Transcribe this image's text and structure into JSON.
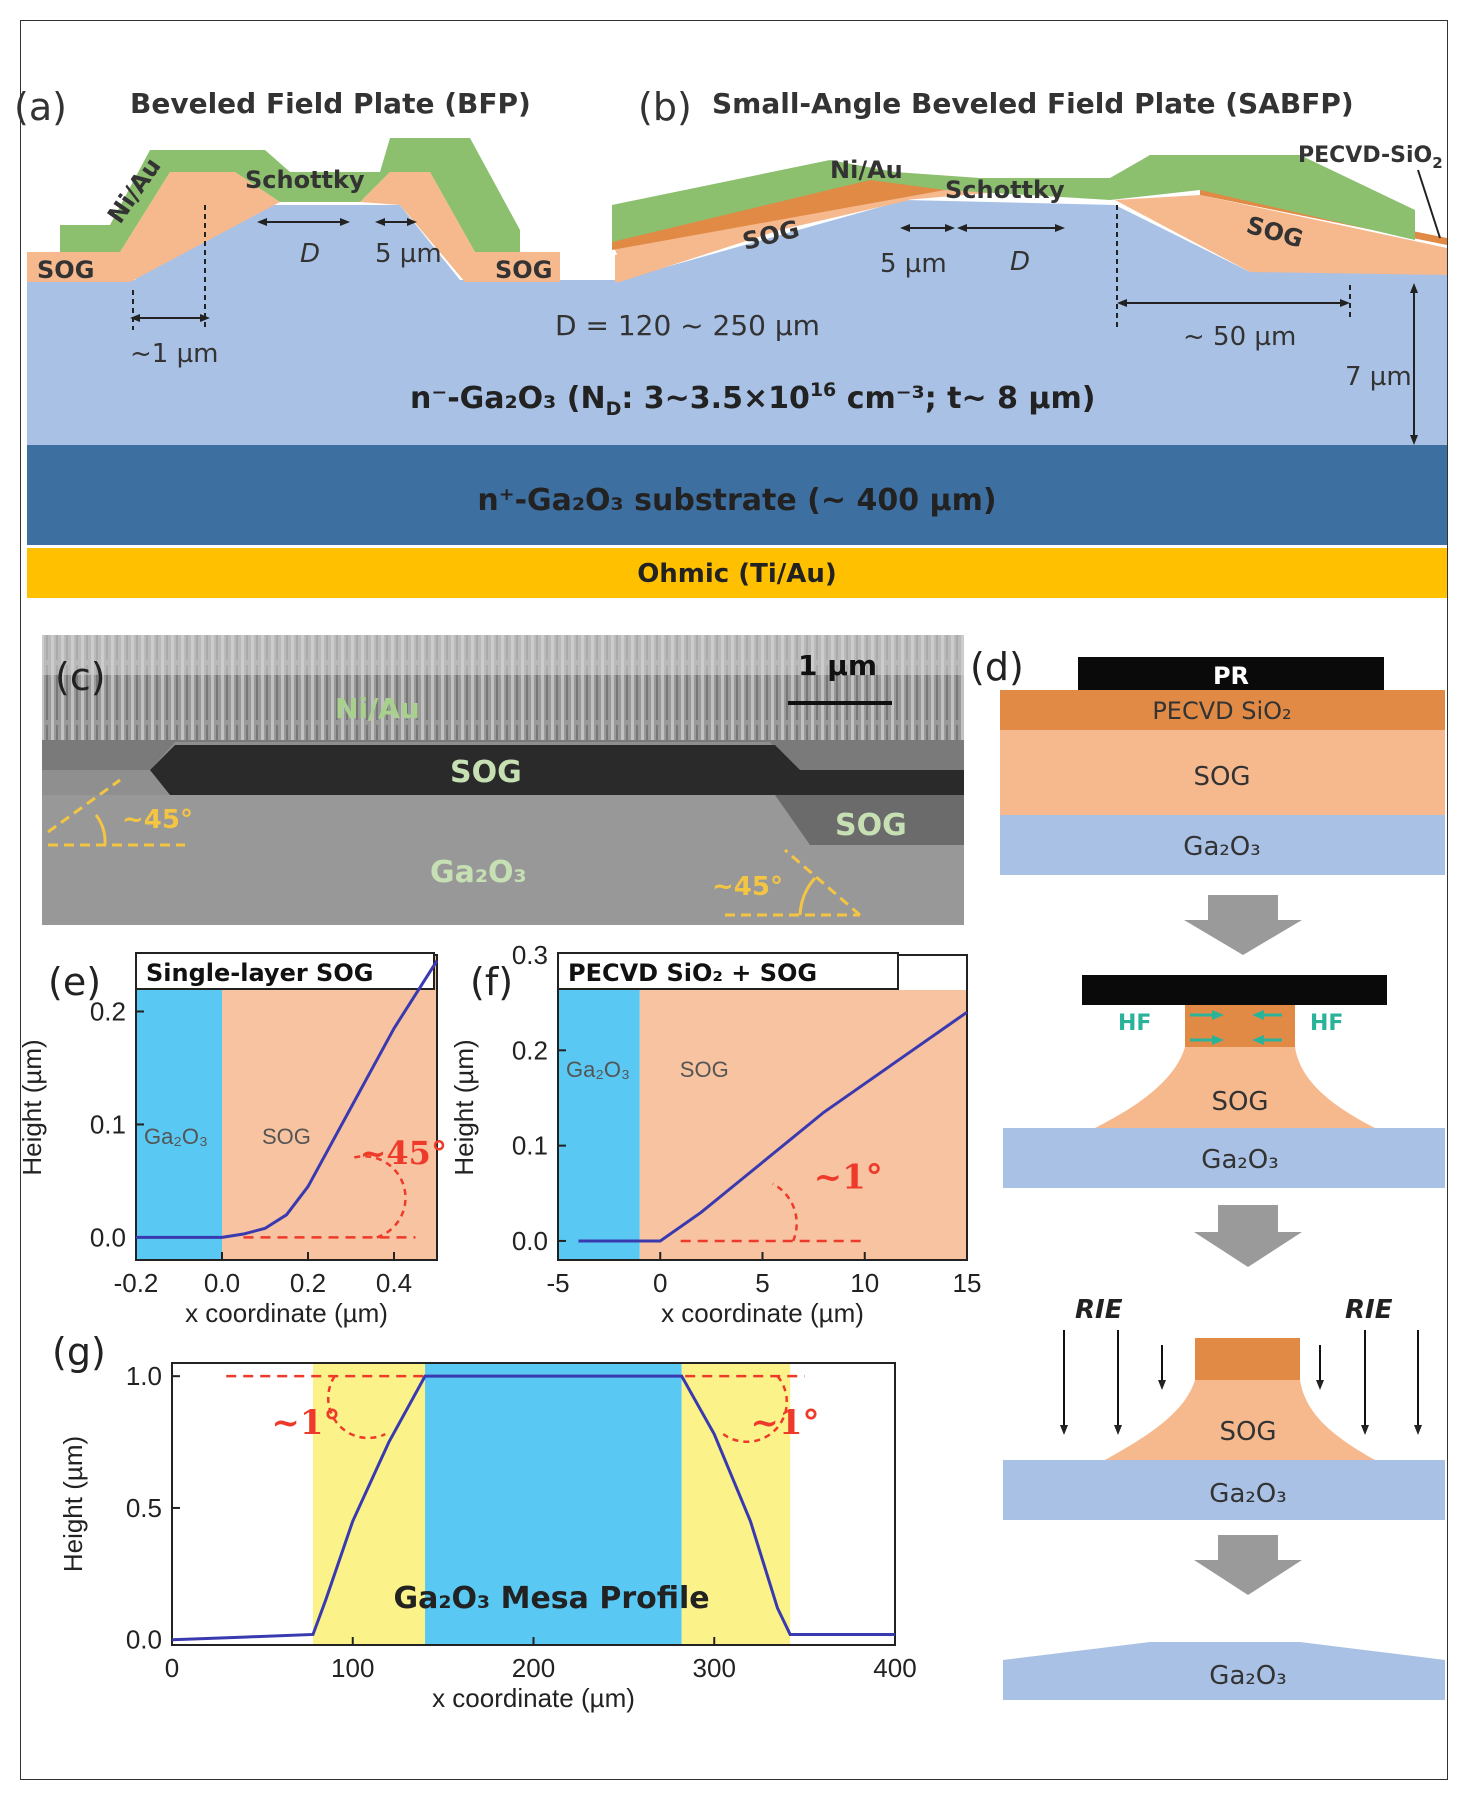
{
  "panel_a": {
    "letter": "(a)",
    "title": "Beveled Field Plate (BFP)",
    "metal": "Ni/Au",
    "schottky": "Schottky",
    "d": "D",
    "five_um": "5 µm",
    "sog_left": "SOG",
    "sog_right": "SOG",
    "one_um": "~1 µm"
  },
  "panel_b": {
    "letter": "(b)",
    "title": "Small-Angle Beveled Field Plate (SABFP)",
    "metal": "Ni/Au",
    "schottky": "Schottky",
    "pecvd": "PECVD-SiO",
    "pecvd_sub": "2",
    "sog_left": "SOG",
    "sog_right": "SOG",
    "five_um": "5 µm",
    "d": "D",
    "fifty_um": "~ 50 µm",
    "seven_um": "7 µm"
  },
  "layers": {
    "d_range": "D = 120 ~ 250 µm",
    "drift": "n⁻-Ga₂O₃ (N",
    "drift_sub": "D",
    "drift_rest": ": 3~3.5×10",
    "drift_exp": "16",
    "drift_unit": " cm⁻³; t~ 8 µm)",
    "substrate": "n⁺-Ga₂O₃ substrate (~ 400 µm)",
    "ohmic": "Ohmic (Ti/Au)"
  },
  "panel_c": {
    "letter": "(c)",
    "scale": "1 µm",
    "metal": "Ni/Au",
    "sog_top": "SOG",
    "sog_right": "SOG",
    "ga2o3": "Ga₂O₃",
    "angle_left": "~45°",
    "angle_right": "~45°"
  },
  "panel_d": {
    "letter": "(d)",
    "pr": "PR",
    "pecvd": "PECVD SiO₂",
    "sog": "SOG",
    "ga2o3": "Ga₂O₃",
    "hf": "HF",
    "rie": "RIE"
  },
  "colors": {
    "ga2o3_light": "#a9c1e4",
    "ga2o3_dark": "#3e6fa1",
    "sog": "#f6b98e",
    "sio2": "#e08a45",
    "metal": "#8cbf6e",
    "ohmic": "#ffc000",
    "plot_blue": "#59c8f2",
    "plot_sog": "#f8c3a0",
    "plot_yellow": "#fbf38a",
    "curve": "#3a3ab0",
    "red": "#ee3a2b"
  },
  "chart_data": [
    {
      "panel": "(e)",
      "type": "line",
      "title": "Single-layer SOG",
      "xlabel": "x coordinate (µm)",
      "ylabel": "Height (µm)",
      "xlim": [
        -0.2,
        0.5
      ],
      "ylim": [
        -0.02,
        0.25
      ],
      "xticks": [
        "-0.2",
        "0.0",
        "0.2",
        "0.4"
      ],
      "yticks": [
        "0.0",
        "0.1",
        "0.2"
      ],
      "regions": [
        {
          "label": "Ga₂O₃",
          "from": -0.2,
          "to": 0.0
        },
        {
          "label": "SOG",
          "from": 0.0,
          "to": 0.5
        }
      ],
      "annotation": "~45°",
      "x": [
        -0.2,
        -0.1,
        0.0,
        0.05,
        0.1,
        0.15,
        0.2,
        0.25,
        0.3,
        0.35,
        0.4,
        0.45,
        0.5
      ],
      "y": [
        0.0,
        0.0,
        0.0,
        0.003,
        0.008,
        0.02,
        0.045,
        0.08,
        0.115,
        0.15,
        0.185,
        0.215,
        0.245
      ]
    },
    {
      "panel": "(f)",
      "type": "line",
      "title": "PECVD SiO₂ + SOG",
      "xlabel": "x coordinate (µm)",
      "ylabel": "Height (µm)",
      "xlim": [
        -5,
        15
      ],
      "ylim": [
        -0.02,
        0.3
      ],
      "xticks": [
        "-5",
        "0",
        "5",
        "10",
        "15"
      ],
      "yticks": [
        "0.0",
        "0.1",
        "0.2",
        "0.3"
      ],
      "regions": [
        {
          "label": "Ga₂O₃",
          "from": -5,
          "to": -1
        },
        {
          "label": "SOG",
          "from": -1,
          "to": 15
        }
      ],
      "annotation": "~1°",
      "x": [
        -4,
        -2,
        -0.5,
        0,
        2,
        4,
        6,
        8,
        10,
        12,
        14,
        15
      ],
      "y": [
        0.0,
        0.0,
        0.0,
        0.0,
        0.03,
        0.065,
        0.1,
        0.135,
        0.165,
        0.195,
        0.225,
        0.24
      ]
    },
    {
      "panel": "(g)",
      "type": "line",
      "xlabel": "x coordinate (µm)",
      "ylabel": "Height (µm)",
      "xlim": [
        0,
        400
      ],
      "ylim": [
        -0.02,
        1.05
      ],
      "xticks": [
        "0",
        "100",
        "200",
        "300",
        "400"
      ],
      "yticks": [
        "0.0",
        "0.5",
        "1.0"
      ],
      "regions": [
        {
          "from": 78,
          "to": 140,
          "fill": "yellow"
        },
        {
          "from": 140,
          "to": 282,
          "fill": "blue"
        },
        {
          "from": 282,
          "to": 342,
          "fill": "yellow"
        }
      ],
      "label": "Ga₂O₃ Mesa Profile",
      "annotation_left": "~1°",
      "annotation_right": "~1°",
      "x": [
        0,
        40,
        78,
        85,
        100,
        120,
        140,
        200,
        282,
        300,
        320,
        335,
        342,
        360,
        400
      ],
      "y": [
        0.0,
        0.01,
        0.02,
        0.15,
        0.45,
        0.75,
        1.0,
        1.0,
        1.0,
        0.78,
        0.45,
        0.12,
        0.02,
        0.02,
        0.02
      ]
    }
  ]
}
